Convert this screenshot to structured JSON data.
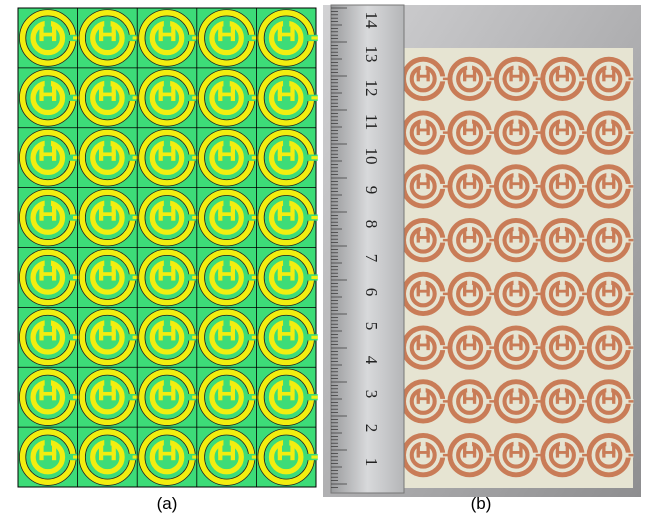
{
  "captions": {
    "a": "(a)",
    "b": "(b)"
  },
  "ruler": {
    "labels": [
      1,
      2,
      3,
      4,
      5,
      6,
      7,
      8,
      9,
      10,
      11,
      12,
      13,
      14
    ]
  }
}
